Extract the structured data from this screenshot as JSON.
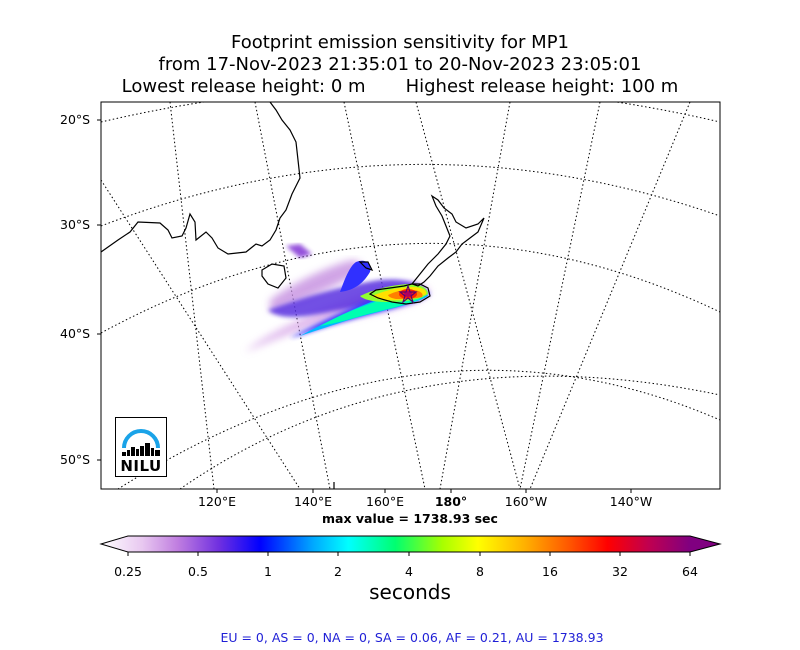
{
  "title": {
    "line1": "Footprint emission sensitivity for MP1",
    "line2": "from 17-Nov-2023 21:35:01 to 20-Nov-2023 23:05:01",
    "line3": "Lowest release height: 0 m       Highest release height: 100 m"
  },
  "map": {
    "lat_labels": [
      "20°S",
      "30°S",
      "40°S",
      "50°S"
    ],
    "lon_labels": [
      "120°E",
      "140°E",
      "160°E",
      "180°",
      "160°W",
      "140°W"
    ],
    "max_value_text": "max value = 1738.93 sec",
    "logo_text": "NILU",
    "release_marker": "star-icon"
  },
  "colorbar": {
    "ticks": [
      "0.25",
      "0.5",
      "1",
      "2",
      "4",
      "8",
      "16",
      "32",
      "64"
    ],
    "unit": "seconds",
    "colors": [
      "#ffffff",
      "#d7a6e8",
      "#9b4fdc",
      "#0000ff",
      "#00a0ff",
      "#00ffff",
      "#00ff70",
      "#a0ff00",
      "#ffff00",
      "#ffa000",
      "#ff3000",
      "#ff0000",
      "#c00050",
      "#800080"
    ]
  },
  "regions_text": "EU = 0,  AS = 0,  NA = 0,  SA = 0.06,  AF = 0.21,  AU = 1738.93"
}
